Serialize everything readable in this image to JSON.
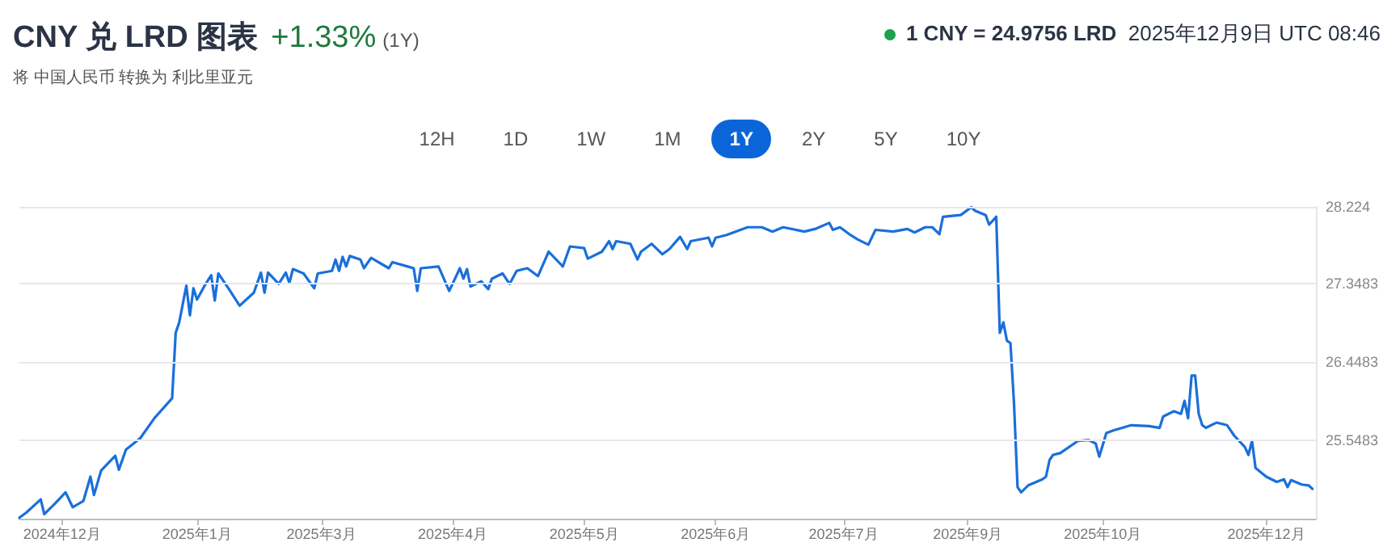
{
  "chart_data": {
    "type": "line",
    "title": "CNY 兑 LRD 图表",
    "subtitle": "将 中国人民币 转换为 利比里亚元",
    "annotations": [
      "+1.33%",
      "(1Y)",
      "1 CNY = 24.9756 LRD",
      "2025年12月9日 UTC 08:46",
      "12H",
      "1D",
      "1W",
      "1M",
      "1Y",
      "2Y",
      "5Y",
      "10Y"
    ],
    "marker": "none",
    "line_style": "solid",
    "grid": "y",
    "xlim": [
      "2024-12-09",
      "2025-12-09"
    ],
    "xticks": [
      {
        "value": "2024-12-21",
        "label": "2024年12月"
      },
      {
        "value": "2025-01-28",
        "label": "2025年1月"
      },
      {
        "value": "2025-03-04",
        "label": "2025年3月"
      },
      {
        "value": "2025-04-10",
        "label": "2025年4月"
      },
      {
        "value": "2025-05-17",
        "label": "2025年5月"
      },
      {
        "value": "2025-06-23",
        "label": "2025年6月"
      },
      {
        "value": "2025-07-29",
        "label": "2025年7月"
      },
      {
        "value": "2025-09-02",
        "label": "2025年9月"
      },
      {
        "value": "2025-10-10",
        "label": "2025年10月"
      },
      {
        "value": "2025-11-25",
        "label": "2025年12月"
      }
    ],
    "ylim": [
      24.6483,
      28.224
    ],
    "yticks": [
      25.5483,
      26.4483,
      27.3483,
      28.224
    ],
    "x": [
      "2024-12-09",
      "2024-12-11",
      "2024-12-15",
      "2024-12-16",
      "2024-12-19",
      "2024-12-22",
      "2024-12-24",
      "2024-12-27",
      "2024-12-29",
      "2024-12-30",
      "2025-01-01",
      "2025-01-05",
      "2025-01-06",
      "2025-01-08",
      "2025-01-12",
      "2025-01-16",
      "2025-01-21",
      "2025-01-22",
      "2025-01-23",
      "2025-01-25",
      "2025-01-26",
      "2025-01-27",
      "2025-01-28",
      "2025-01-30",
      "2025-02-01",
      "2025-02-02",
      "2025-02-03",
      "2025-02-06",
      "2025-02-09",
      "2025-02-13",
      "2025-02-15",
      "2025-02-16",
      "2025-02-17",
      "2025-02-20",
      "2025-02-22",
      "2025-02-23",
      "2025-02-24",
      "2025-02-27",
      "2025-03-02",
      "2025-03-03",
      "2025-03-07",
      "2025-03-08",
      "2025-03-09",
      "2025-03-10",
      "2025-03-11",
      "2025-03-12",
      "2025-03-15",
      "2025-03-16",
      "2025-03-18",
      "2025-03-23",
      "2025-03-24",
      "2025-03-30",
      "2025-03-31",
      "2025-04-01",
      "2025-04-06",
      "2025-04-09",
      "2025-04-12",
      "2025-04-13",
      "2025-04-14",
      "2025-04-15",
      "2025-04-18",
      "2025-04-20",
      "2025-04-21",
      "2025-04-24",
      "2025-04-26",
      "2025-04-28",
      "2025-05-01",
      "2025-05-04",
      "2025-05-07",
      "2025-05-11",
      "2025-05-13",
      "2025-05-17",
      "2025-05-18",
      "2025-05-22",
      "2025-05-24",
      "2025-05-25",
      "2025-05-26",
      "2025-05-30",
      "2025-06-01",
      "2025-06-02",
      "2025-06-05",
      "2025-06-08",
      "2025-06-10",
      "2025-06-13",
      "2025-06-15",
      "2025-06-16",
      "2025-06-21",
      "2025-06-22",
      "2025-06-23",
      "2025-06-26",
      "2025-07-02",
      "2025-07-06",
      "2025-07-09",
      "2025-07-12",
      "2025-07-18",
      "2025-07-21",
      "2025-07-25",
      "2025-07-26",
      "2025-07-28",
      "2025-07-31",
      "2025-08-02",
      "2025-08-05",
      "2025-08-07",
      "2025-08-12",
      "2025-08-16",
      "2025-08-18",
      "2025-08-21",
      "2025-08-23",
      "2025-08-25",
      "2025-08-26",
      "2025-08-31",
      "2025-09-03",
      "2025-09-04",
      "2025-09-07",
      "2025-09-08",
      "2025-09-10",
      "2025-09-11",
      "2025-09-12",
      "2025-09-13",
      "2025-09-14",
      "2025-09-15",
      "2025-09-16",
      "2025-09-17",
      "2025-09-19",
      "2025-09-23",
      "2025-09-24",
      "2025-09-25",
      "2025-09-26",
      "2025-09-28",
      "2025-10-03",
      "2025-10-06",
      "2025-10-08",
      "2025-10-09",
      "2025-10-11",
      "2025-10-13",
      "2025-10-18",
      "2025-10-23",
      "2025-10-26",
      "2025-10-27",
      "2025-10-30",
      "2025-11-01",
      "2025-11-02",
      "2025-11-03",
      "2025-11-04",
      "2025-11-05",
      "2025-11-06",
      "2025-11-07",
      "2025-11-08",
      "2025-11-11",
      "2025-11-14",
      "2025-11-16",
      "2025-11-19",
      "2025-11-20",
      "2025-11-21",
      "2025-11-22",
      "2025-11-25",
      "2025-11-28",
      "2025-11-30",
      "2025-12-01",
      "2025-12-02",
      "2025-12-05",
      "2025-12-07",
      "2025-12-08"
    ],
    "series": [
      {
        "color": "#1a6fdb",
        "values": [
          24.66,
          24.72,
          24.87,
          24.7,
          24.82,
          24.95,
          24.78,
          24.85,
          25.13,
          24.92,
          25.2,
          25.37,
          25.21,
          25.44,
          25.57,
          25.8,
          26.03,
          26.78,
          26.9,
          27.32,
          26.98,
          27.29,
          27.16,
          27.31,
          27.44,
          27.15,
          27.46,
          27.28,
          27.09,
          27.24,
          27.47,
          27.24,
          27.47,
          27.34,
          27.47,
          27.35,
          27.51,
          27.46,
          27.29,
          27.46,
          27.49,
          27.62,
          27.49,
          27.65,
          27.54,
          27.66,
          27.62,
          27.52,
          27.64,
          27.52,
          27.59,
          27.52,
          27.26,
          27.52,
          27.54,
          27.26,
          27.52,
          27.4,
          27.51,
          27.31,
          27.37,
          27.28,
          27.4,
          27.46,
          27.34,
          27.49,
          27.52,
          27.43,
          27.71,
          27.54,
          27.77,
          27.75,
          27.63,
          27.71,
          27.83,
          27.74,
          27.83,
          27.8,
          27.62,
          27.71,
          27.8,
          27.68,
          27.74,
          27.88,
          27.74,
          27.83,
          27.87,
          27.77,
          27.87,
          27.9,
          27.99,
          27.99,
          27.94,
          27.99,
          27.94,
          27.97,
          28.04,
          27.96,
          27.99,
          27.9,
          27.85,
          27.79,
          27.96,
          27.94,
          27.97,
          27.93,
          27.99,
          27.99,
          27.91,
          28.11,
          28.13,
          28.22,
          28.18,
          28.13,
          28.02,
          28.11,
          26.78,
          26.9,
          26.69,
          26.66,
          25.97,
          25.01,
          24.95,
          25.03,
          25.1,
          25.13,
          25.32,
          25.38,
          25.4,
          25.54,
          25.55,
          25.51,
          25.36,
          25.63,
          25.66,
          25.72,
          25.71,
          25.69,
          25.82,
          25.88,
          25.85,
          26.0,
          25.8,
          26.29,
          26.29,
          25.85,
          25.72,
          25.69,
          25.75,
          25.72,
          25.6,
          25.47,
          25.38,
          25.54,
          25.23,
          25.13,
          25.07,
          25.1,
          25.01,
          25.09,
          25.04,
          25.03,
          24.99
        ]
      }
    ]
  }
}
